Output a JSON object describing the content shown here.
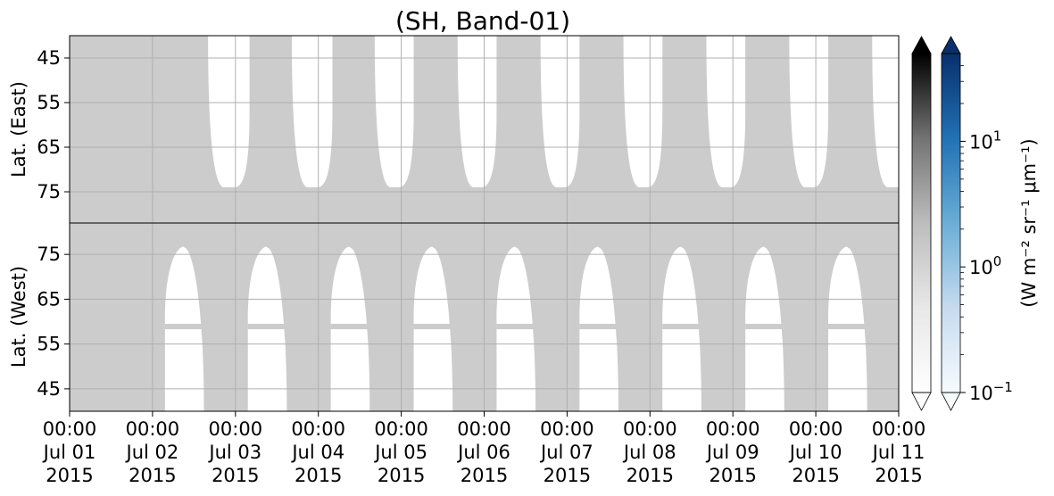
{
  "chart_data": {
    "type": "heatmap",
    "title": "(SH, Band-01)",
    "panels": [
      {
        "name": "east",
        "ylabel": "Lat. (East)",
        "yticks": [
          45,
          55,
          65,
          75
        ],
        "ylim": [
          82,
          40
        ],
        "dark_region_bounds_lat": [
          [
            40,
            55
          ],
          [
            74,
            82
          ]
        ]
      },
      {
        "name": "west",
        "ylabel": "Lat. (West)",
        "yticks": [
          75,
          65,
          55,
          45
        ],
        "ylim": [
          82,
          40
        ],
        "dark_region_bounds_lat": [
          [
            40,
            77
          ],
          [
            77,
            82
          ]
        ]
      }
    ],
    "xaxis": {
      "range": [
        "2015-07-01T00:00",
        "2015-07-11T00:00"
      ],
      "ticks": [
        {
          "time": "00:00",
          "date": "Jul 01",
          "year": "2015"
        },
        {
          "time": "00:00",
          "date": "Jul 02",
          "year": "2015"
        },
        {
          "time": "00:00",
          "date": "Jul 03",
          "year": "2015"
        },
        {
          "time": "00:00",
          "date": "Jul 04",
          "year": "2015"
        },
        {
          "time": "00:00",
          "date": "Jul 05",
          "year": "2015"
        },
        {
          "time": "00:00",
          "date": "Jul 06",
          "year": "2015"
        },
        {
          "time": "00:00",
          "date": "Jul 07",
          "year": "2015"
        },
        {
          "time": "00:00",
          "date": "Jul 08",
          "year": "2015"
        },
        {
          "time": "00:00",
          "date": "Jul 09",
          "year": "2015"
        },
        {
          "time": "00:00",
          "date": "Jul 10",
          "year": "2015"
        },
        {
          "time": "00:00",
          "date": "Jul 11",
          "year": "2015"
        }
      ]
    },
    "east_bright_windows_days": [
      [
        1.67,
        2.17
      ],
      [
        2.68,
        3.17
      ],
      [
        3.68,
        4.15
      ],
      [
        4.68,
        5.15
      ],
      [
        5.68,
        6.15
      ],
      [
        6.68,
        7.15
      ],
      [
        7.68,
        8.15
      ],
      [
        8.68,
        9.15
      ],
      [
        9.68,
        10.15
      ]
    ],
    "west_bright_windows_days": [
      [
        1.15,
        1.62
      ],
      [
        2.15,
        2.62
      ],
      [
        3.15,
        3.62
      ],
      [
        4.15,
        4.62
      ],
      [
        5.15,
        5.62
      ],
      [
        6.15,
        6.62
      ],
      [
        7.15,
        7.62
      ],
      [
        8.15,
        8.62
      ],
      [
        9.15,
        9.62
      ]
    ],
    "colorbars": [
      {
        "name": "grey",
        "cmap": "Greys",
        "extend": "both"
      },
      {
        "name": "blue",
        "cmap": "Blues",
        "extend": "both",
        "ticks": [
          {
            "base": "10",
            "exp": "1"
          },
          {
            "base": "10",
            "exp": "0"
          },
          {
            "base": "10",
            "exp": "−1"
          }
        ],
        "range": [
          0.1,
          50
        ],
        "scale": "log"
      }
    ],
    "colorbar_label": "(W m⁻² sr⁻¹ μm⁻¹)",
    "grid": true,
    "colors": {
      "data": "#cccccc",
      "background": "#ffffff",
      "grid": "#b0b0b0"
    }
  }
}
